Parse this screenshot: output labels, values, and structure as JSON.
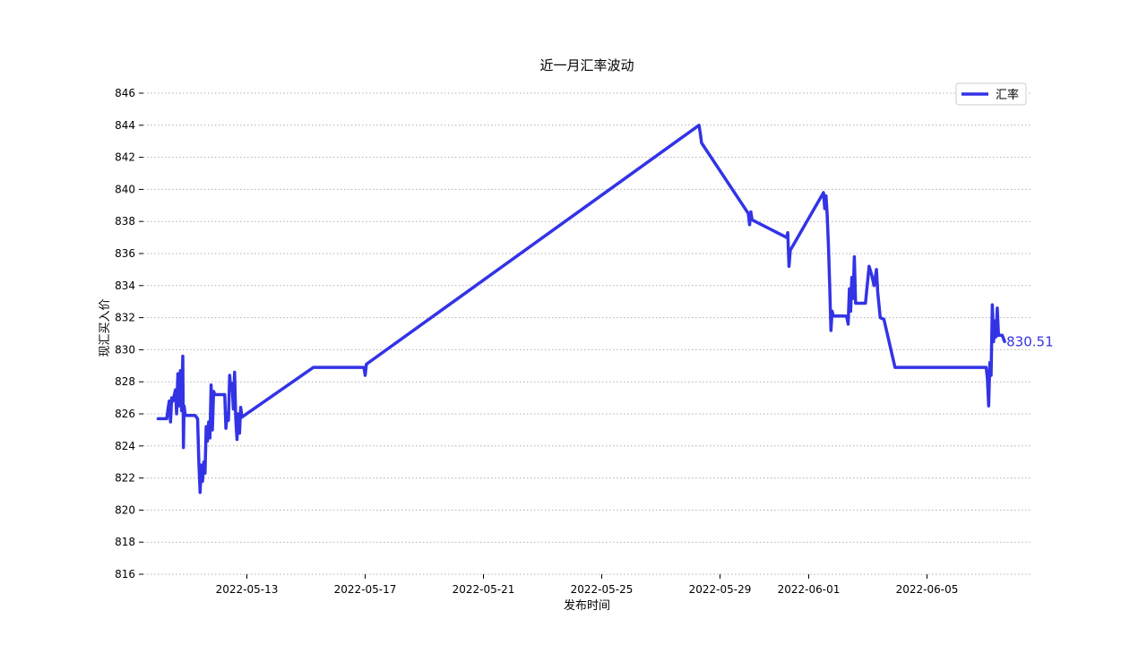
{
  "chart_data": {
    "type": "line",
    "title": "近一月汇率波动",
    "xlabel": "发布时间",
    "ylabel": "现汇买入价",
    "ylim": [
      816,
      846
    ],
    "yticks": [
      816,
      818,
      820,
      822,
      824,
      826,
      828,
      830,
      832,
      834,
      836,
      838,
      840,
      842,
      844,
      846
    ],
    "xlim": [
      "2022-05-09T12:00",
      "2022-06-08T12:00"
    ],
    "xticks": [
      "2022-05-13",
      "2022-05-17",
      "2022-05-21",
      "2022-05-25",
      "2022-05-29",
      "2022-06-01",
      "2022-06-05"
    ],
    "grid": "y, dotted",
    "legend_position": "top-right",
    "last_value_label": "830.51",
    "line_color": "#3333e6",
    "series": [
      {
        "name": "汇率",
        "points": [
          [
            "2022-05-10T00:00",
            825.7
          ],
          [
            "2022-05-10T07:00",
            825.7
          ],
          [
            "2022-05-10T08:00",
            826.3
          ],
          [
            "2022-05-10T09:00",
            826.8
          ],
          [
            "2022-05-10T10:00",
            825.5
          ],
          [
            "2022-05-10T11:00",
            827.0
          ],
          [
            "2022-05-10T12:00",
            826.8
          ],
          [
            "2022-05-10T14:00",
            827.5
          ],
          [
            "2022-05-10T15:00",
            826.0
          ],
          [
            "2022-05-10T16:00",
            828.5
          ],
          [
            "2022-05-10T17:00",
            826.5
          ],
          [
            "2022-05-10T18:00",
            828.7
          ],
          [
            "2022-05-10T19:00",
            826.2
          ],
          [
            "2022-05-10T20:00",
            829.6
          ],
          [
            "2022-05-10T20:30",
            823.9
          ],
          [
            "2022-05-10T21:00",
            826.5
          ],
          [
            "2022-05-10T22:00",
            825.9
          ],
          [
            "2022-05-11T06:00",
            825.9
          ],
          [
            "2022-05-11T08:00",
            825.7
          ],
          [
            "2022-05-11T09:00",
            823.0
          ],
          [
            "2022-05-11T10:00",
            821.1
          ],
          [
            "2022-05-11T11:00",
            822.8
          ],
          [
            "2022-05-11T12:00",
            821.8
          ],
          [
            "2022-05-11T13:00",
            823.0
          ],
          [
            "2022-05-11T14:00",
            822.3
          ],
          [
            "2022-05-11T15:00",
            825.2
          ],
          [
            "2022-05-11T16:00",
            824.3
          ],
          [
            "2022-05-11T17:00",
            825.5
          ],
          [
            "2022-05-11T18:00",
            824.5
          ],
          [
            "2022-05-11T19:00",
            827.8
          ],
          [
            "2022-05-11T20:00",
            825.0
          ],
          [
            "2022-05-11T21:00",
            827.4
          ],
          [
            "2022-05-11T22:00",
            827.2
          ],
          [
            "2022-05-12T06:00",
            827.2
          ],
          [
            "2022-05-12T07:00",
            825.1
          ],
          [
            "2022-05-12T08:00",
            826.0
          ],
          [
            "2022-05-12T09:00",
            825.6
          ],
          [
            "2022-05-12T10:00",
            828.4
          ],
          [
            "2022-05-12T11:00",
            827.5
          ],
          [
            "2022-05-12T12:00",
            827.9
          ],
          [
            "2022-05-12T13:00",
            826.3
          ],
          [
            "2022-05-12T14:00",
            828.6
          ],
          [
            "2022-05-12T15:00",
            825.7
          ],
          [
            "2022-05-12T16:00",
            824.4
          ],
          [
            "2022-05-12T17:00",
            826.0
          ],
          [
            "2022-05-12T18:00",
            824.8
          ],
          [
            "2022-05-12T19:00",
            826.4
          ],
          [
            "2022-05-12T20:00",
            825.8
          ],
          [
            "2022-05-15T06:00",
            828.9
          ],
          [
            "2022-05-16T23:00",
            828.9
          ],
          [
            "2022-05-17T00:00",
            828.4
          ],
          [
            "2022-05-17T01:00",
            829.1
          ],
          [
            "2022-05-28T07:00",
            844.0
          ],
          [
            "2022-05-28T08:00",
            843.5
          ],
          [
            "2022-05-28T09:00",
            842.9
          ],
          [
            "2022-05-29T23:00",
            838.5
          ],
          [
            "2022-05-30T00:00",
            837.8
          ],
          [
            "2022-05-30T01:00",
            838.6
          ],
          [
            "2022-05-30T02:00",
            838.1
          ],
          [
            "2022-05-31T06:00",
            837.0
          ],
          [
            "2022-05-31T07:00",
            837.3
          ],
          [
            "2022-05-31T08:00",
            835.2
          ],
          [
            "2022-05-31T09:00",
            836.2
          ],
          [
            "2022-06-01T12:00",
            839.8
          ],
          [
            "2022-06-01T13:00",
            838.8
          ],
          [
            "2022-06-01T14:00",
            839.6
          ],
          [
            "2022-06-01T15:00",
            838.4
          ],
          [
            "2022-06-01T16:00",
            836.5
          ],
          [
            "2022-06-01T17:00",
            834.0
          ],
          [
            "2022-06-01T18:00",
            831.2
          ],
          [
            "2022-06-01T19:00",
            832.4
          ],
          [
            "2022-06-01T20:00",
            832.1
          ],
          [
            "2022-06-02T06:00",
            832.1
          ],
          [
            "2022-06-02T07:00",
            832.0
          ],
          [
            "2022-06-02T08:00",
            831.6
          ],
          [
            "2022-06-02T09:00",
            833.8
          ],
          [
            "2022-06-02T10:00",
            832.4
          ],
          [
            "2022-06-02T11:00",
            834.5
          ],
          [
            "2022-06-02T12:00",
            833.2
          ],
          [
            "2022-06-02T13:00",
            835.8
          ],
          [
            "2022-06-02T14:00",
            832.9
          ],
          [
            "2022-06-02T22:00",
            832.9
          ],
          [
            "2022-06-03T01:00",
            835.2
          ],
          [
            "2022-06-03T03:00",
            834.7
          ],
          [
            "2022-06-03T05:00",
            834.0
          ],
          [
            "2022-06-03T07:00",
            835.0
          ],
          [
            "2022-06-03T08:00",
            833.6
          ],
          [
            "2022-06-03T10:00",
            832.0
          ],
          [
            "2022-06-03T13:00",
            831.9
          ],
          [
            "2022-06-03T22:00",
            828.9
          ],
          [
            "2022-06-07T00:00",
            828.9
          ],
          [
            "2022-06-07T01:00",
            828.2
          ],
          [
            "2022-06-07T02:00",
            826.5
          ],
          [
            "2022-06-07T03:00",
            829.2
          ],
          [
            "2022-06-07T04:00",
            828.4
          ],
          [
            "2022-06-07T05:00",
            832.8
          ],
          [
            "2022-06-07T06:00",
            830.5
          ],
          [
            "2022-06-07T07:00",
            831.8
          ],
          [
            "2022-06-07T08:00",
            830.8
          ],
          [
            "2022-06-07T09:00",
            832.6
          ],
          [
            "2022-06-07T10:00",
            830.9
          ],
          [
            "2022-06-07T13:00",
            830.9
          ],
          [
            "2022-06-07T15:00",
            830.51
          ]
        ]
      }
    ]
  }
}
